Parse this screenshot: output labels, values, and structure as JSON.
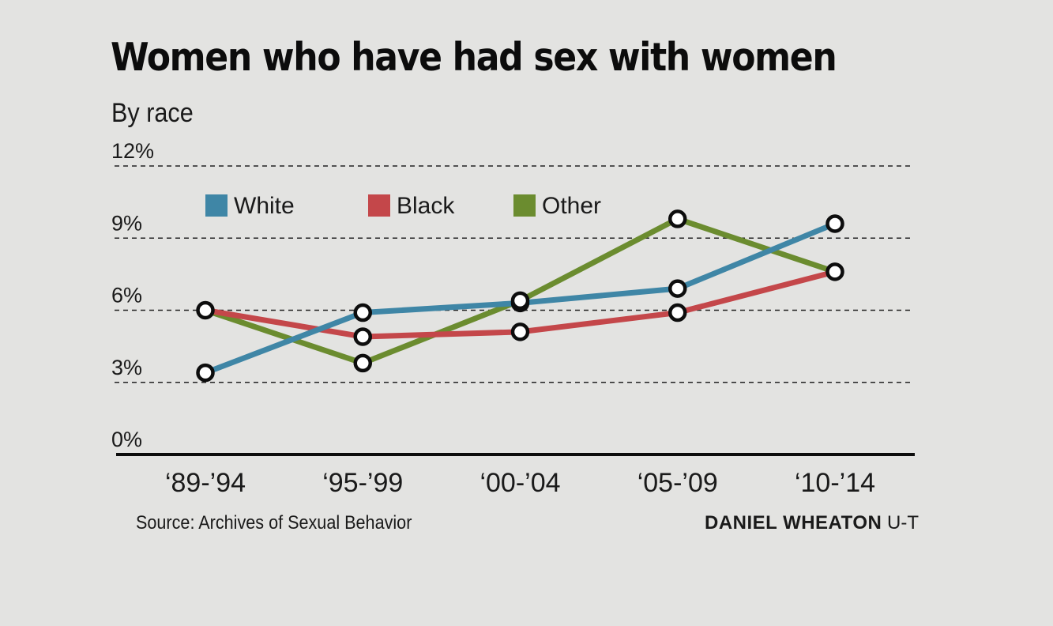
{
  "title": "Women who have had sex with women",
  "subtitle": "By race",
  "source": "Source: Archives of Sexual Behavior",
  "credit": {
    "name": "DANIEL WHEATON",
    "org": "U-T"
  },
  "colors": {
    "White": "#3f86a6",
    "Black": "#c4474a",
    "Other": "#6b8c2f"
  },
  "chart_data": {
    "type": "line",
    "categories": [
      "‘89-’94",
      "‘95-’99",
      "‘00-’04",
      "‘05-’09",
      "‘10-’14"
    ],
    "ylim": [
      0,
      12
    ],
    "yticks": [
      "0%",
      "3%",
      "6%",
      "9%",
      "12%"
    ],
    "grid": true,
    "legend_position": "top-left",
    "series": [
      {
        "name": "White",
        "values": [
          3.4,
          5.9,
          6.3,
          6.9,
          9.6
        ]
      },
      {
        "name": "Black",
        "values": [
          6.0,
          4.9,
          5.1,
          5.9,
          7.6
        ]
      },
      {
        "name": "Other",
        "values": [
          6.0,
          3.8,
          6.4,
          9.8,
          7.6
        ]
      }
    ]
  }
}
